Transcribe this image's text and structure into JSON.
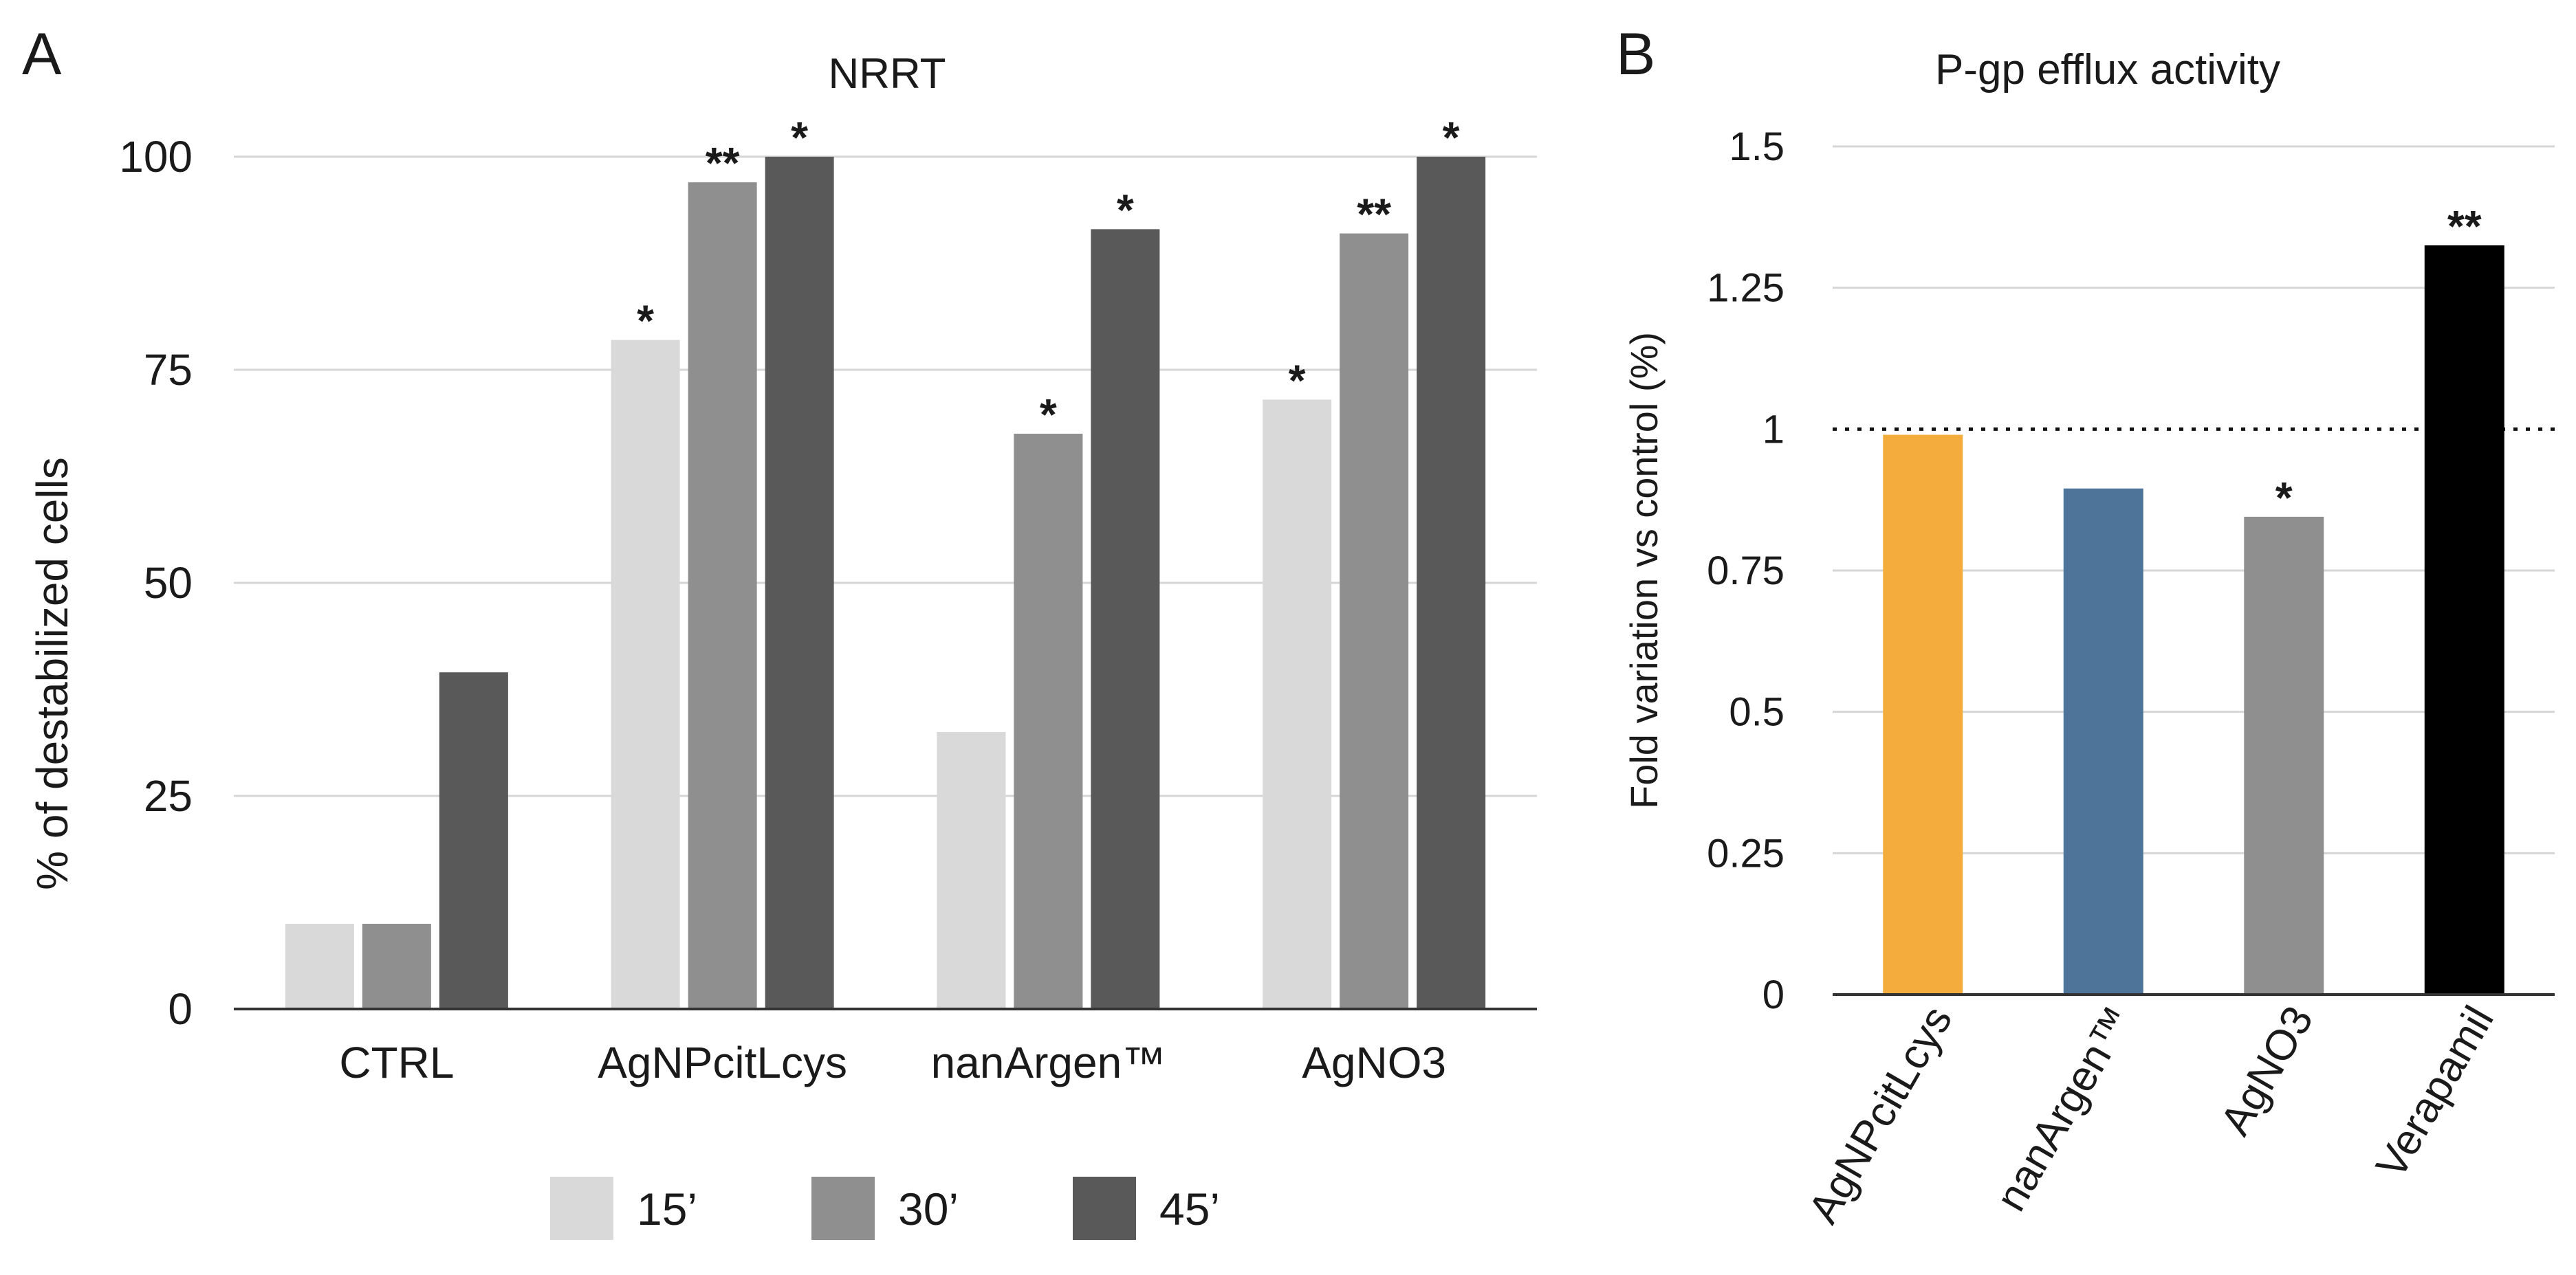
{
  "chart_data": [
    {
      "panel": "A",
      "type": "bar",
      "title": "NRRT",
      "xlabel": "",
      "ylabel": "% of destabilized cells",
      "ylim": [
        0,
        100
      ],
      "yticks": [
        "0",
        "25",
        "50",
        "75",
        "100"
      ],
      "grid": true,
      "legend_position": "bottom",
      "categories": [
        "CTRL",
        "AgNPcitLcys",
        "nanArgen™",
        "AgNO3"
      ],
      "series": [
        {
          "name": "15’",
          "color": "#d9d9d9",
          "values": [
            10,
            78.5,
            32.5,
            71.5
          ],
          "annotations": [
            "",
            "*",
            "",
            "*"
          ]
        },
        {
          "name": "30’",
          "color": "#8f8f8f",
          "values": [
            10,
            97,
            67.5,
            91
          ],
          "annotations": [
            "",
            "**",
            "*",
            "**"
          ]
        },
        {
          "name": "45’",
          "color": "#595959",
          "values": [
            39.5,
            100,
            91.5,
            100
          ],
          "annotations": [
            "",
            "*",
            "*",
            "*"
          ]
        }
      ]
    },
    {
      "panel": "B",
      "type": "bar",
      "title": "P-gp efflux activity",
      "xlabel": "",
      "ylabel": "Fold variation vs control (%)",
      "ylim": [
        0,
        1.5
      ],
      "yticks": [
        "0",
        "0.25",
        "0.5",
        "0.75",
        "1",
        "1.25",
        "1.5"
      ],
      "grid": true,
      "reference_line": 1,
      "categories": [
        "AgNPcitLcys",
        "nanArgen™",
        "AgNO3",
        "Verapamil"
      ],
      "values": [
        0.99,
        0.895,
        0.845,
        1.325
      ],
      "colors": [
        "#f4ad3c",
        "#4e7599",
        "#8f8f8f",
        "#000000"
      ],
      "annotations": [
        "",
        "",
        "*",
        "**"
      ]
    }
  ]
}
